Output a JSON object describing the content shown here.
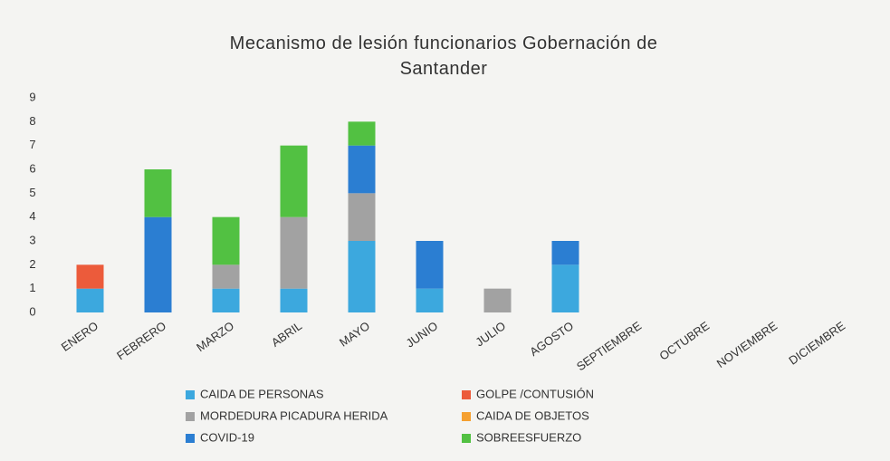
{
  "chart_data": {
    "type": "stacked_bar",
    "title": "Mecanismo de lesión funcionarios Gobernación de Santander",
    "categories": [
      "ENERO",
      "FEBRERO",
      "MARZO",
      "ABRIL",
      "MAYO",
      "JUNIO",
      "JULIO",
      "AGOSTO",
      "SEPTIEMBRE",
      "OCTUBRE",
      "NOVIEMBRE",
      "DICIEMBRE"
    ],
    "series": [
      {
        "name": "CAIDA DE PERSONAS",
        "color": "#3ca8de",
        "values": [
          1,
          0,
          1,
          1,
          3,
          1,
          0,
          2,
          0,
          0,
          0,
          0
        ]
      },
      {
        "name": "GOLPE /CONTUSIÓN",
        "color": "#ec5b3b",
        "values": [
          1,
          0,
          0,
          0,
          0,
          0,
          0,
          0,
          0,
          0,
          0,
          0
        ]
      },
      {
        "name": "MORDEDURA PICADURA HERIDA",
        "color": "#a2a2a2",
        "values": [
          0,
          0,
          1,
          3,
          2,
          0,
          1,
          0,
          0,
          0,
          0,
          0
        ]
      },
      {
        "name": "CAIDA DE OBJETOS",
        "color": "#f5a030",
        "values": [
          0,
          0,
          0,
          0,
          0,
          0,
          0,
          0,
          0,
          0,
          0,
          0
        ]
      },
      {
        "name": "COVID-19",
        "color": "#2b7ed2",
        "values": [
          0,
          4,
          0,
          0,
          2,
          2,
          0,
          1,
          0,
          0,
          0,
          0
        ]
      },
      {
        "name": "SOBREESFUERZO",
        "color": "#52c142",
        "values": [
          0,
          2,
          2,
          3,
          1,
          0,
          0,
          0,
          0,
          0,
          0,
          0
        ]
      }
    ],
    "ylim": [
      0,
      9
    ],
    "yticks": [
      0,
      1,
      2,
      3,
      4,
      5,
      6,
      7,
      8,
      9
    ],
    "grid": false
  }
}
